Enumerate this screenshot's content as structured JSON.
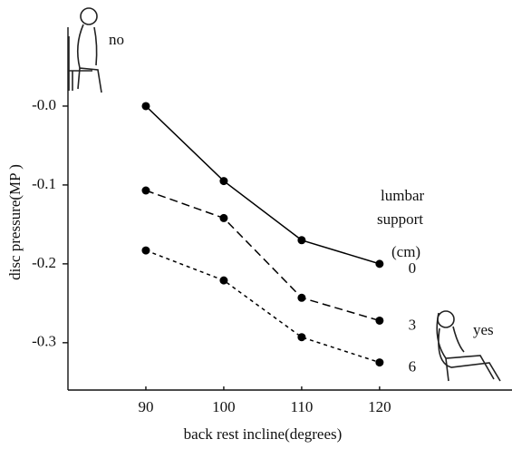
{
  "chart_data": {
    "type": "line",
    "x_label": "back rest incline(degrees)",
    "y_label": "disc pressure(MP )",
    "x": [
      90,
      100,
      110,
      120
    ],
    "series": [
      {
        "name": "0",
        "color": "#000000",
        "dash": "solid",
        "values": [
          0,
          -0.095,
          -0.17,
          -0.2
        ]
      },
      {
        "name": "3",
        "color": "#000000",
        "dash": "long",
        "values": [
          -0.107,
          -0.142,
          -0.243,
          -0.272
        ]
      },
      {
        "name": "6",
        "color": "#000000",
        "dash": "short",
        "values": [
          -0.183,
          -0.221,
          -0.293,
          -0.325
        ]
      }
    ],
    "legend_title": [
      "lumbar",
      "support",
      "(cm)"
    ],
    "annotations": [
      "no",
      "yes"
    ],
    "xlim": [
      80,
      137
    ],
    "xticks": [
      90,
      100,
      110,
      120
    ],
    "ylim": [
      -0.36,
      0.1
    ],
    "yticks": [
      {
        "value": 0,
        "label": "-0.0"
      },
      -0.1,
      -0.2,
      -0.3
    ]
  }
}
